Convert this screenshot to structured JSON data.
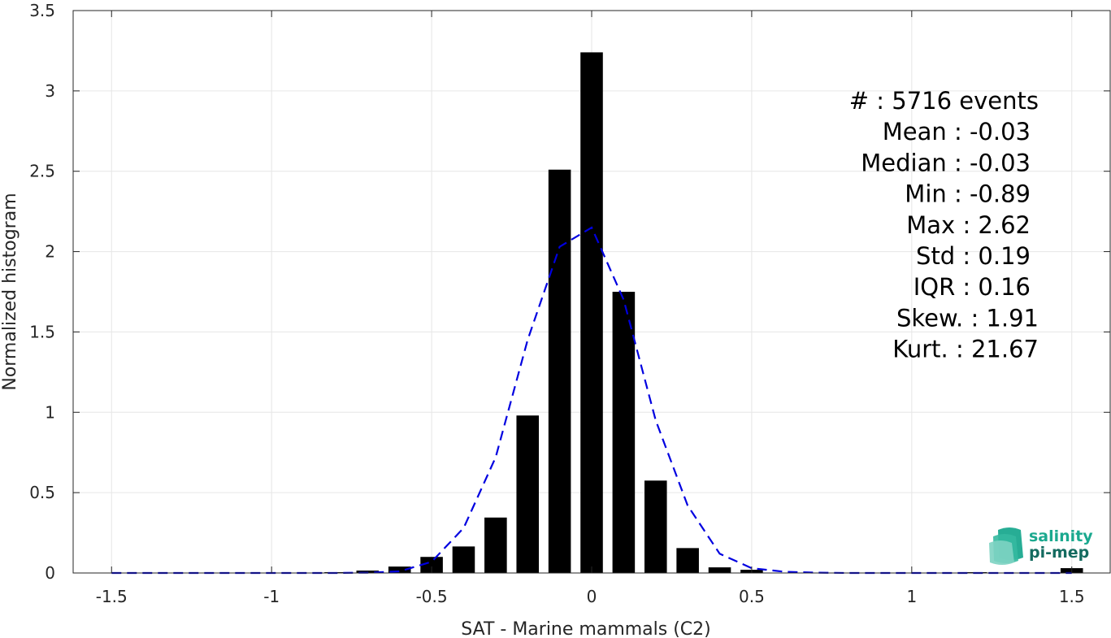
{
  "chart_data": {
    "type": "bar",
    "xlabel": "SAT - Marine mammals (C2)",
    "ylabel": "Normalized histogram",
    "xlim": [
      -1.62,
      1.62
    ],
    "ylim": [
      0,
      3.5
    ],
    "x_ticks": [
      -1.5,
      -1,
      -0.5,
      0,
      0.5,
      1,
      1.5
    ],
    "x_tick_labels": [
      "-1.5",
      "-1",
      "-0.5",
      "0",
      "0.5",
      "1",
      "1.5"
    ],
    "y_ticks": [
      0,
      0.5,
      1,
      1.5,
      2,
      2.5,
      3,
      3.5
    ],
    "y_tick_labels": [
      "0",
      "0.5",
      "1",
      "1.5",
      "2",
      "2.5",
      "3",
      "3.5"
    ],
    "grid": true,
    "bar_width": 0.07,
    "bars": {
      "x": [
        -0.8,
        -0.7,
        -0.6,
        -0.5,
        -0.4,
        -0.3,
        -0.2,
        -0.1,
        0,
        0.1,
        0.2,
        0.3,
        0.4,
        0.5,
        1.2,
        1.5
      ],
      "values": [
        0.005,
        0.015,
        0.04,
        0.1,
        0.165,
        0.345,
        0.98,
        2.51,
        3.24,
        1.75,
        0.575,
        0.155,
        0.035,
        0.02,
        0.005,
        0.03
      ]
    },
    "fit_line": {
      "style": "dashed",
      "color": "#0000E0",
      "x": [
        -1.5,
        -1.4,
        -1.3,
        -1.2,
        -1.1,
        -1.0,
        -0.9,
        -0.8,
        -0.7,
        -0.6,
        -0.5,
        -0.4,
        -0.3,
        -0.2,
        -0.1,
        0,
        0.1,
        0.2,
        0.3,
        0.4,
        0.5,
        0.6,
        0.7,
        0.8,
        0.9,
        1.0,
        1.1,
        1.2,
        1.3,
        1.4,
        1.5
      ],
      "y": [
        0,
        0,
        0,
        0,
        0,
        0,
        0,
        0,
        0.002,
        0.01,
        0.07,
        0.28,
        0.72,
        1.45,
        2.03,
        2.15,
        1.7,
        0.95,
        0.42,
        0.12,
        0.03,
        0.008,
        0.002,
        0,
        0,
        0,
        0,
        0,
        0,
        0,
        0
      ]
    },
    "annotations": [
      "#  : 5716 events",
      "Mean : -0.03",
      "Median : -0.03",
      "Min : -0.89",
      "Max : 2.62",
      "Std : 0.19",
      "IQR : 0.16",
      "Skew. : 1.91",
      "Kurt. : 21.67"
    ],
    "bar_color": "#000000"
  },
  "logo": {
    "line1": "salinity",
    "line2": "pi-mep",
    "color1": "#1BA98F",
    "color2": "#146B60"
  }
}
